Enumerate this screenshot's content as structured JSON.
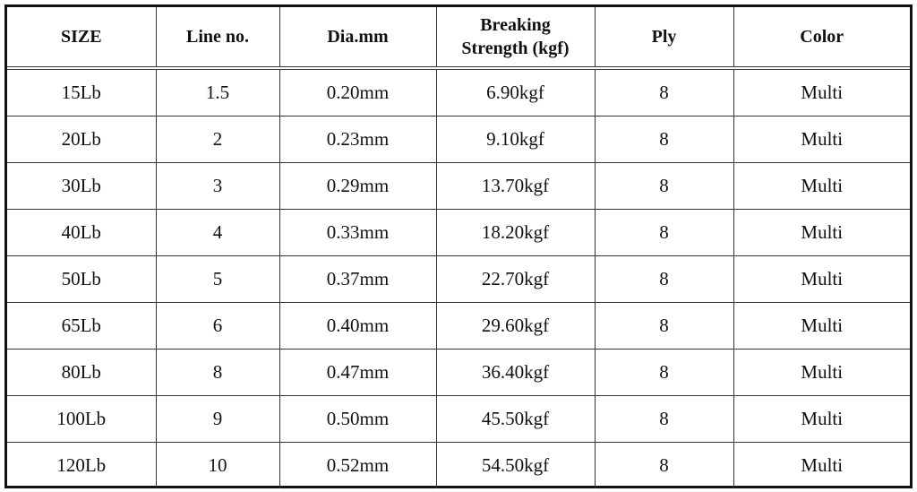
{
  "table": {
    "header": [
      "SIZE",
      "Line no.",
      "Dia.mm",
      "Breaking Strength (kgf)",
      "Ply",
      "Color"
    ],
    "rows": [
      [
        "15Lb",
        "1.5",
        "0.20mm",
        "6.90kgf",
        "8",
        "Multi"
      ],
      [
        "20Lb",
        "2",
        "0.23mm",
        "9.10kgf",
        "8",
        "Multi"
      ],
      [
        "30Lb",
        "3",
        "0.29mm",
        "13.70kgf",
        "8",
        "Multi"
      ],
      [
        "40Lb",
        "4",
        "0.33mm",
        "18.20kgf",
        "8",
        "Multi"
      ],
      [
        "50Lb",
        "5",
        "0.37mm",
        "22.70kgf",
        "8",
        "Multi"
      ],
      [
        "65Lb",
        "6",
        "0.40mm",
        "29.60kgf",
        "8",
        "Multi"
      ],
      [
        "80Lb",
        "8",
        "0.47mm",
        "36.40kgf",
        "8",
        "Multi"
      ],
      [
        "100Lb",
        "9",
        "0.50mm",
        "45.50kgf",
        "8",
        "Multi"
      ],
      [
        "120Lb",
        "10",
        "0.52mm",
        "54.50kgf",
        "8",
        "Multi"
      ]
    ]
  }
}
